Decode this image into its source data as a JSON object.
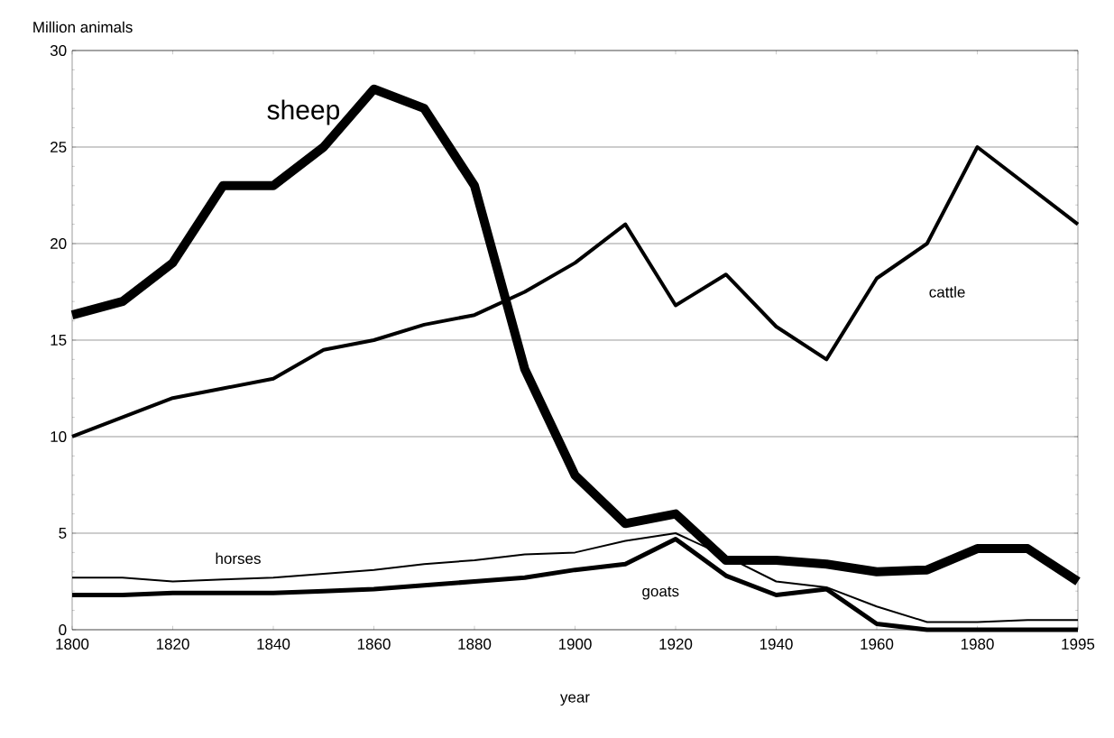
{
  "chart_data": {
    "type": "line",
    "ylabel": "Million animals",
    "xlabel": "year",
    "categories": [
      "1800",
      null,
      "1820",
      null,
      "1840",
      null,
      "1860",
      null,
      "1880",
      null,
      "1900",
      null,
      "1920",
      null,
      "1940",
      null,
      "1960",
      null,
      "1980",
      null,
      "1995"
    ],
    "series": [
      {
        "name": "sheep",
        "color": "#000000",
        "values": [
          16.3,
          17,
          19,
          23,
          23,
          25,
          28,
          27,
          23,
          13.5,
          8,
          5.5,
          6,
          3.6,
          3.6,
          3.4,
          3,
          3.1,
          4.2,
          4.2,
          2.5
        ]
      },
      {
        "name": "cattle",
        "color": "#000000",
        "values": [
          10,
          11,
          12,
          12.5,
          13,
          14.5,
          15,
          15.8,
          16.3,
          17.5,
          19,
          21,
          16.8,
          18.4,
          15.7,
          14,
          18.2,
          20,
          25,
          23,
          21
        ]
      },
      {
        "name": "horses",
        "color": "#000000",
        "values": [
          2.7,
          2.7,
          2.5,
          2.6,
          2.7,
          2.9,
          3.1,
          3.4,
          3.6,
          3.9,
          4,
          4.6,
          5,
          3.8,
          2.5,
          2.2,
          1.2,
          0.4,
          0.4,
          0.5,
          0.5
        ]
      },
      {
        "name": "goats",
        "color": "#000000",
        "values": [
          1.8,
          1.8,
          1.9,
          1.9,
          1.9,
          2,
          2.1,
          2.3,
          2.5,
          2.7,
          3.1,
          3.4,
          4.7,
          2.8,
          1.8,
          2.1,
          0.3,
          0,
          0,
          0,
          0
        ]
      }
    ],
    "ylim": [
      0,
      30
    ],
    "yticks": [
      0,
      5,
      10,
      15,
      20,
      25,
      30
    ],
    "grid": "y",
    "marker": "none",
    "line_style": "solid"
  }
}
